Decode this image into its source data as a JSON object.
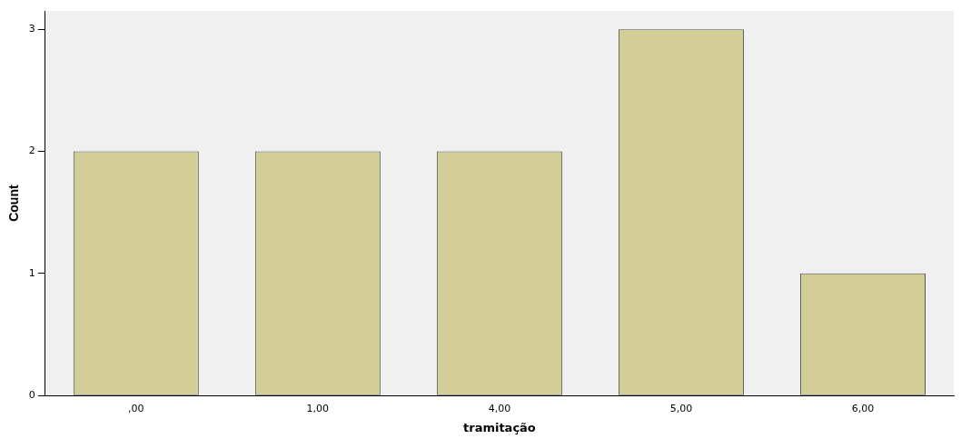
{
  "chart_data": {
    "type": "bar",
    "xlabel": "tramitação",
    "ylabel": "Count",
    "categories": [
      ",00",
      "1,00",
      "4,00",
      "5,00",
      "6,00"
    ],
    "values": [
      2,
      2,
      2,
      3,
      1
    ],
    "color": "#d3ce97",
    "ylim": [
      0,
      3.15
    ],
    "yticks": [
      0,
      1,
      2,
      3
    ],
    "grid": false,
    "legend": false
  }
}
